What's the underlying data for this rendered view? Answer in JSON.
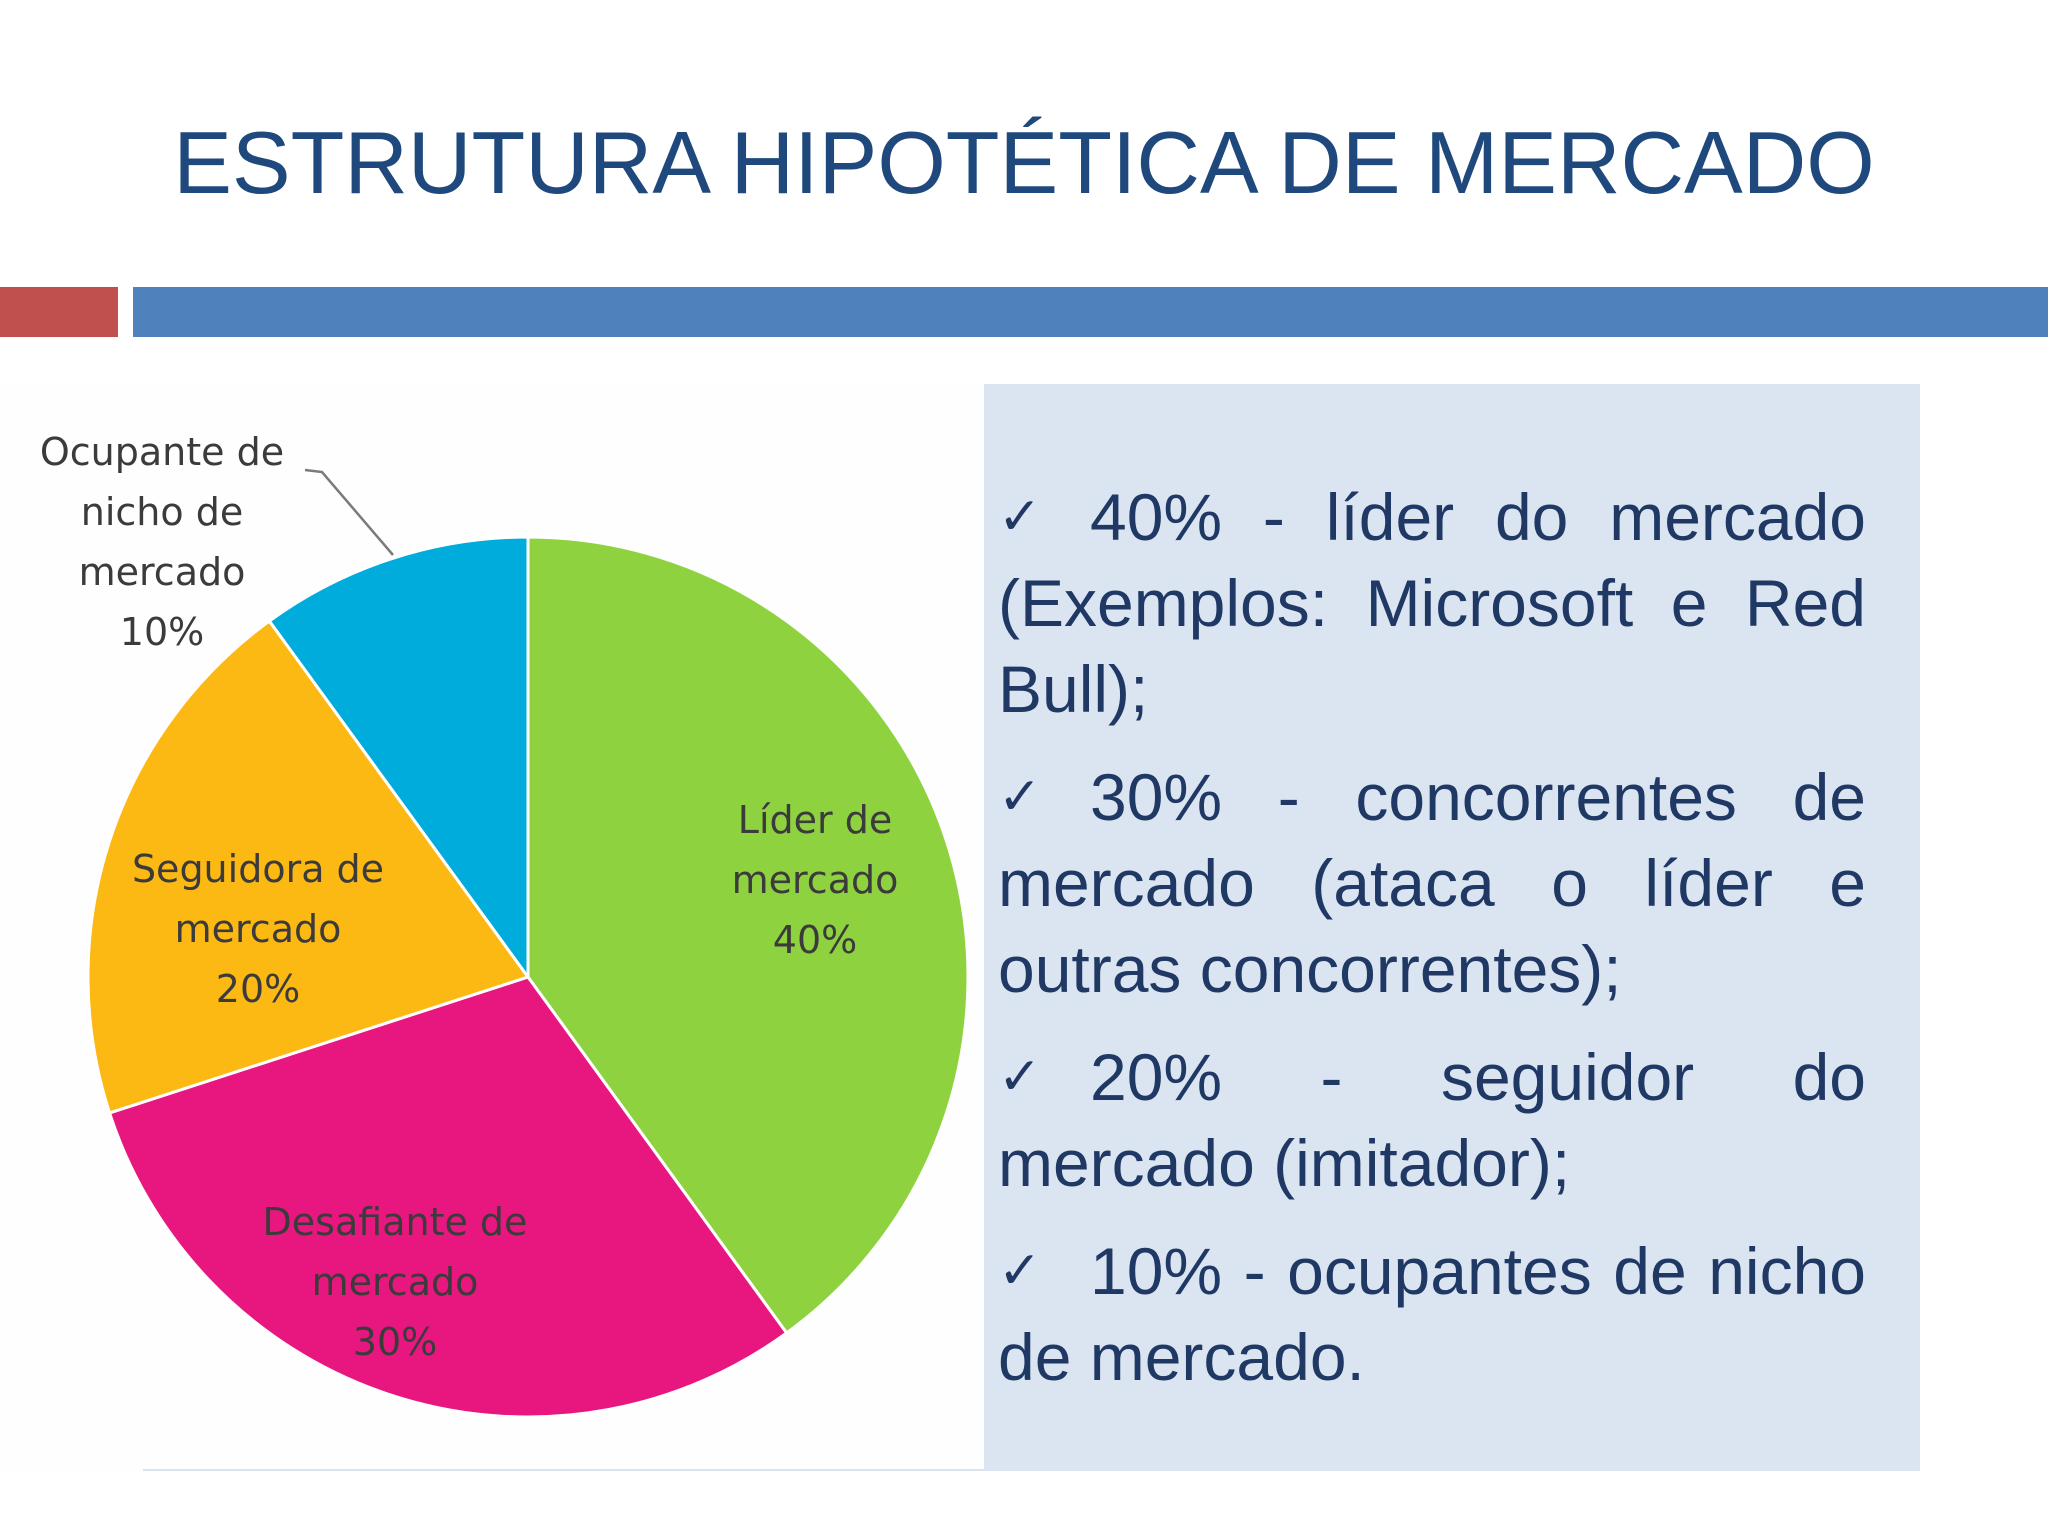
{
  "slide": {
    "title": "ESTRUTURA HIPOTÉTICA DE MERCADO",
    "accent_red": "#c0504d",
    "accent_blue": "#4f81bd",
    "textbox_bg": "#dbe5f1"
  },
  "bullets": [
    {
      "check": "✓",
      "text": "40% - líder do mercado (Exemplos: Microsoft e Red Bull);"
    },
    {
      "check": "✓",
      "text": "30% - concorrentes de mercado (ataca o líder e outras concorrentes);"
    },
    {
      "check": "✓",
      "text": "20% - seguidor do mercado (imitador);"
    },
    {
      "check": "✓",
      "text": "10% - ocupantes de nicho de mercado."
    }
  ],
  "chart_data": {
    "type": "pie",
    "title": "",
    "start_angle_deg": 0,
    "direction": "clockwise",
    "slices": [
      {
        "label_lines": [
          "Líder de",
          "mercado",
          "40%"
        ],
        "value": 40,
        "color": "#8ed33f"
      },
      {
        "label_lines": [
          "Desafiante de",
          "mercado",
          "30%"
        ],
        "value": 30,
        "color": "#e8177f"
      },
      {
        "label_lines": [
          "Seguidora de",
          "mercado",
          "20%"
        ],
        "value": 20,
        "color": "#fdb913"
      },
      {
        "label_lines": [
          "Ocupante de",
          "nicho de",
          "mercado",
          "10%"
        ],
        "value": 10,
        "color": "#00acdc"
      }
    ]
  }
}
